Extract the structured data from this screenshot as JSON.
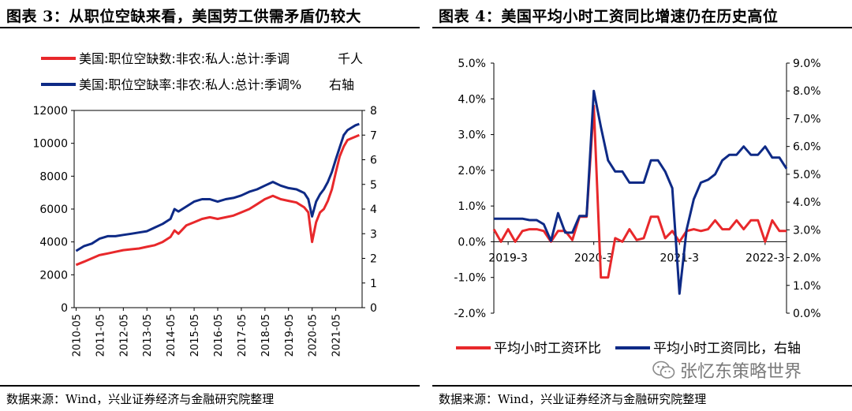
{
  "left_panel": {
    "title": "图表 3：从职位空缺来看，美国劳工供需矛盾仍较大",
    "source": "数据来源：Wind，兴业证券经济与金融研究院整理"
  },
  "right_panel": {
    "title": "图表 4：美国平均小时工资同比增速仍在历史高位",
    "source": "数据来源：Wind，兴业证券经济与金融研究院整理"
  },
  "watermark": {
    "text": "张忆东策略世界",
    "icon": "wechat-icon"
  },
  "chart_data": [
    {
      "type": "line",
      "title": "",
      "legend_placement": "top",
      "grid": false,
      "x_tick_labels": [
        "2010-05",
        "2011-05",
        "2012-05",
        "2013-05",
        "2014-05",
        "2015-05",
        "2016-05",
        "2017-05",
        "2018-05",
        "2019-05",
        "2020-05",
        "2021-05"
      ],
      "y_left": {
        "ticks": [
          "0",
          "2000",
          "4000",
          "6000",
          "8000",
          "10000",
          "12000"
        ],
        "range": [
          0,
          12000
        ]
      },
      "y_right": {
        "ticks": [
          "0",
          "1",
          "2",
          "3",
          "4",
          "5",
          "6",
          "7",
          "8"
        ],
        "range": [
          0,
          8
        ]
      },
      "series": [
        {
          "name": "美国:职位空缺数:非农:私人:总计:季调",
          "unit_label": "千人",
          "axis": "left",
          "color": "#e8282b",
          "x": [
            2010.33,
            2010.67,
            2011.0,
            2011.33,
            2011.67,
            2012.0,
            2012.33,
            2012.67,
            2013.0,
            2013.33,
            2013.67,
            2014.0,
            2014.33,
            2014.5,
            2014.67,
            2015.0,
            2015.33,
            2015.67,
            2016.0,
            2016.33,
            2016.67,
            2017.0,
            2017.33,
            2017.67,
            2018.0,
            2018.33,
            2018.67,
            2019.0,
            2019.33,
            2019.67,
            2020.0,
            2020.17,
            2020.33,
            2020.5,
            2020.67,
            2020.83,
            2021.0,
            2021.17,
            2021.33,
            2021.5,
            2021.67,
            2021.83,
            2022.0,
            2022.17,
            2022.33
          ],
          "values": [
            2600,
            2800,
            3000,
            3200,
            3300,
            3400,
            3500,
            3550,
            3600,
            3700,
            3800,
            4000,
            4300,
            4700,
            4500,
            5000,
            5200,
            5400,
            5500,
            5400,
            5500,
            5600,
            5800,
            6000,
            6300,
            6600,
            6800,
            6600,
            6500,
            6400,
            6100,
            5800,
            4000,
            5200,
            5800,
            6000,
            6500,
            7200,
            8200,
            9200,
            9800,
            10200,
            10300,
            10400,
            10500
          ]
        },
        {
          "name": "美国:职位空缺率:非农:私人:总计:季调%",
          "unit_label": "右轴",
          "axis": "right",
          "color": "#0e2a86",
          "x": [
            2010.33,
            2010.67,
            2011.0,
            2011.33,
            2011.67,
            2012.0,
            2012.33,
            2012.67,
            2013.0,
            2013.33,
            2013.67,
            2014.0,
            2014.33,
            2014.5,
            2014.67,
            2015.0,
            2015.33,
            2015.67,
            2016.0,
            2016.33,
            2016.67,
            2017.0,
            2017.33,
            2017.67,
            2018.0,
            2018.33,
            2018.67,
            2019.0,
            2019.33,
            2019.67,
            2020.0,
            2020.17,
            2020.33,
            2020.5,
            2020.67,
            2020.83,
            2021.0,
            2021.17,
            2021.33,
            2021.5,
            2021.67,
            2021.83,
            2022.0,
            2022.17,
            2022.33
          ],
          "values": [
            2.3,
            2.5,
            2.6,
            2.8,
            2.9,
            2.9,
            2.95,
            3.0,
            3.05,
            3.1,
            3.25,
            3.4,
            3.6,
            4.0,
            3.9,
            4.1,
            4.3,
            4.4,
            4.4,
            4.3,
            4.4,
            4.45,
            4.55,
            4.7,
            4.8,
            4.95,
            5.1,
            4.95,
            4.85,
            4.8,
            4.65,
            4.4,
            3.7,
            4.3,
            4.6,
            4.8,
            5.1,
            5.5,
            6.0,
            6.5,
            7.0,
            7.2,
            7.3,
            7.4,
            7.45
          ]
        }
      ]
    },
    {
      "type": "line",
      "title": "",
      "legend_placement": "bottom",
      "grid": false,
      "x_tick_labels": [
        "2019-3",
        "2020-3",
        "2021-3",
        "2022-3"
      ],
      "y_left": {
        "ticks": [
          "-2.0%",
          "-1.0%",
          "0.0%",
          "1.0%",
          "2.0%",
          "3.0%",
          "4.0%",
          "5.0%"
        ],
        "range": [
          -2.0,
          5.0
        ]
      },
      "y_right": {
        "ticks": [
          "0.0%",
          "1.0%",
          "2.0%",
          "3.0%",
          "4.0%",
          "5.0%",
          "6.0%",
          "7.0%",
          "8.0%",
          "9.0%"
        ],
        "range": [
          0.0,
          9.0
        ]
      },
      "series": [
        {
          "name": "平均小时工资环比",
          "axis": "left",
          "color": "#e8282b",
          "x": [
            "2019-1",
            "2019-2",
            "2019-3",
            "2019-4",
            "2019-5",
            "2019-6",
            "2019-7",
            "2019-8",
            "2019-9",
            "2019-10",
            "2019-11",
            "2019-12",
            "2020-1",
            "2020-2",
            "2020-3",
            "2020-4",
            "2020-5",
            "2020-6",
            "2020-7",
            "2020-8",
            "2020-9",
            "2020-10",
            "2020-11",
            "2020-12",
            "2021-1",
            "2021-2",
            "2021-3",
            "2021-4",
            "2021-5",
            "2021-6",
            "2021-7",
            "2021-8",
            "2021-9",
            "2021-10",
            "2021-11",
            "2021-12",
            "2022-1",
            "2022-2",
            "2022-3",
            "2022-4",
            "2022-5",
            "2022-6"
          ],
          "values": [
            0.35,
            0.0,
            0.35,
            0.0,
            0.3,
            0.35,
            0.35,
            0.3,
            0.0,
            0.3,
            0.3,
            0.05,
            0.7,
            0.7,
            3.8,
            -1.0,
            -1.0,
            0.1,
            0.0,
            0.35,
            0.05,
            0.1,
            0.7,
            0.7,
            0.1,
            0.3,
            0.0,
            0.3,
            0.35,
            0.3,
            0.35,
            0.6,
            0.35,
            0.35,
            0.6,
            0.35,
            0.6,
            0.6,
            0.0,
            0.6,
            0.3,
            0.3
          ]
        },
        {
          "name": "平均小时工资同比，右轴",
          "axis": "right",
          "color": "#0e2a86",
          "x": [
            "2019-1",
            "2019-2",
            "2019-3",
            "2019-4",
            "2019-5",
            "2019-6",
            "2019-7",
            "2019-8",
            "2019-9",
            "2019-10",
            "2019-11",
            "2019-12",
            "2020-1",
            "2020-2",
            "2020-3",
            "2020-4",
            "2020-5",
            "2020-6",
            "2020-7",
            "2020-8",
            "2020-9",
            "2020-10",
            "2020-11",
            "2020-12",
            "2021-1",
            "2021-2",
            "2021-3",
            "2021-4",
            "2021-5",
            "2021-6",
            "2021-7",
            "2021-8",
            "2021-9",
            "2021-10",
            "2021-11",
            "2021-12",
            "2022-1",
            "2022-2",
            "2022-3",
            "2022-4",
            "2022-5",
            "2022-6"
          ],
          "values": [
            3.4,
            3.4,
            3.4,
            3.4,
            3.4,
            3.35,
            3.35,
            3.2,
            2.6,
            3.6,
            2.9,
            2.9,
            3.5,
            3.5,
            8.0,
            6.7,
            5.5,
            5.1,
            5.1,
            4.7,
            4.7,
            4.7,
            5.5,
            5.5,
            5.1,
            4.5,
            0.7,
            3.0,
            4.1,
            4.7,
            4.8,
            5.0,
            5.5,
            5.7,
            5.7,
            6.0,
            5.7,
            5.7,
            6.0,
            5.6,
            5.6,
            5.2
          ]
        }
      ]
    }
  ]
}
